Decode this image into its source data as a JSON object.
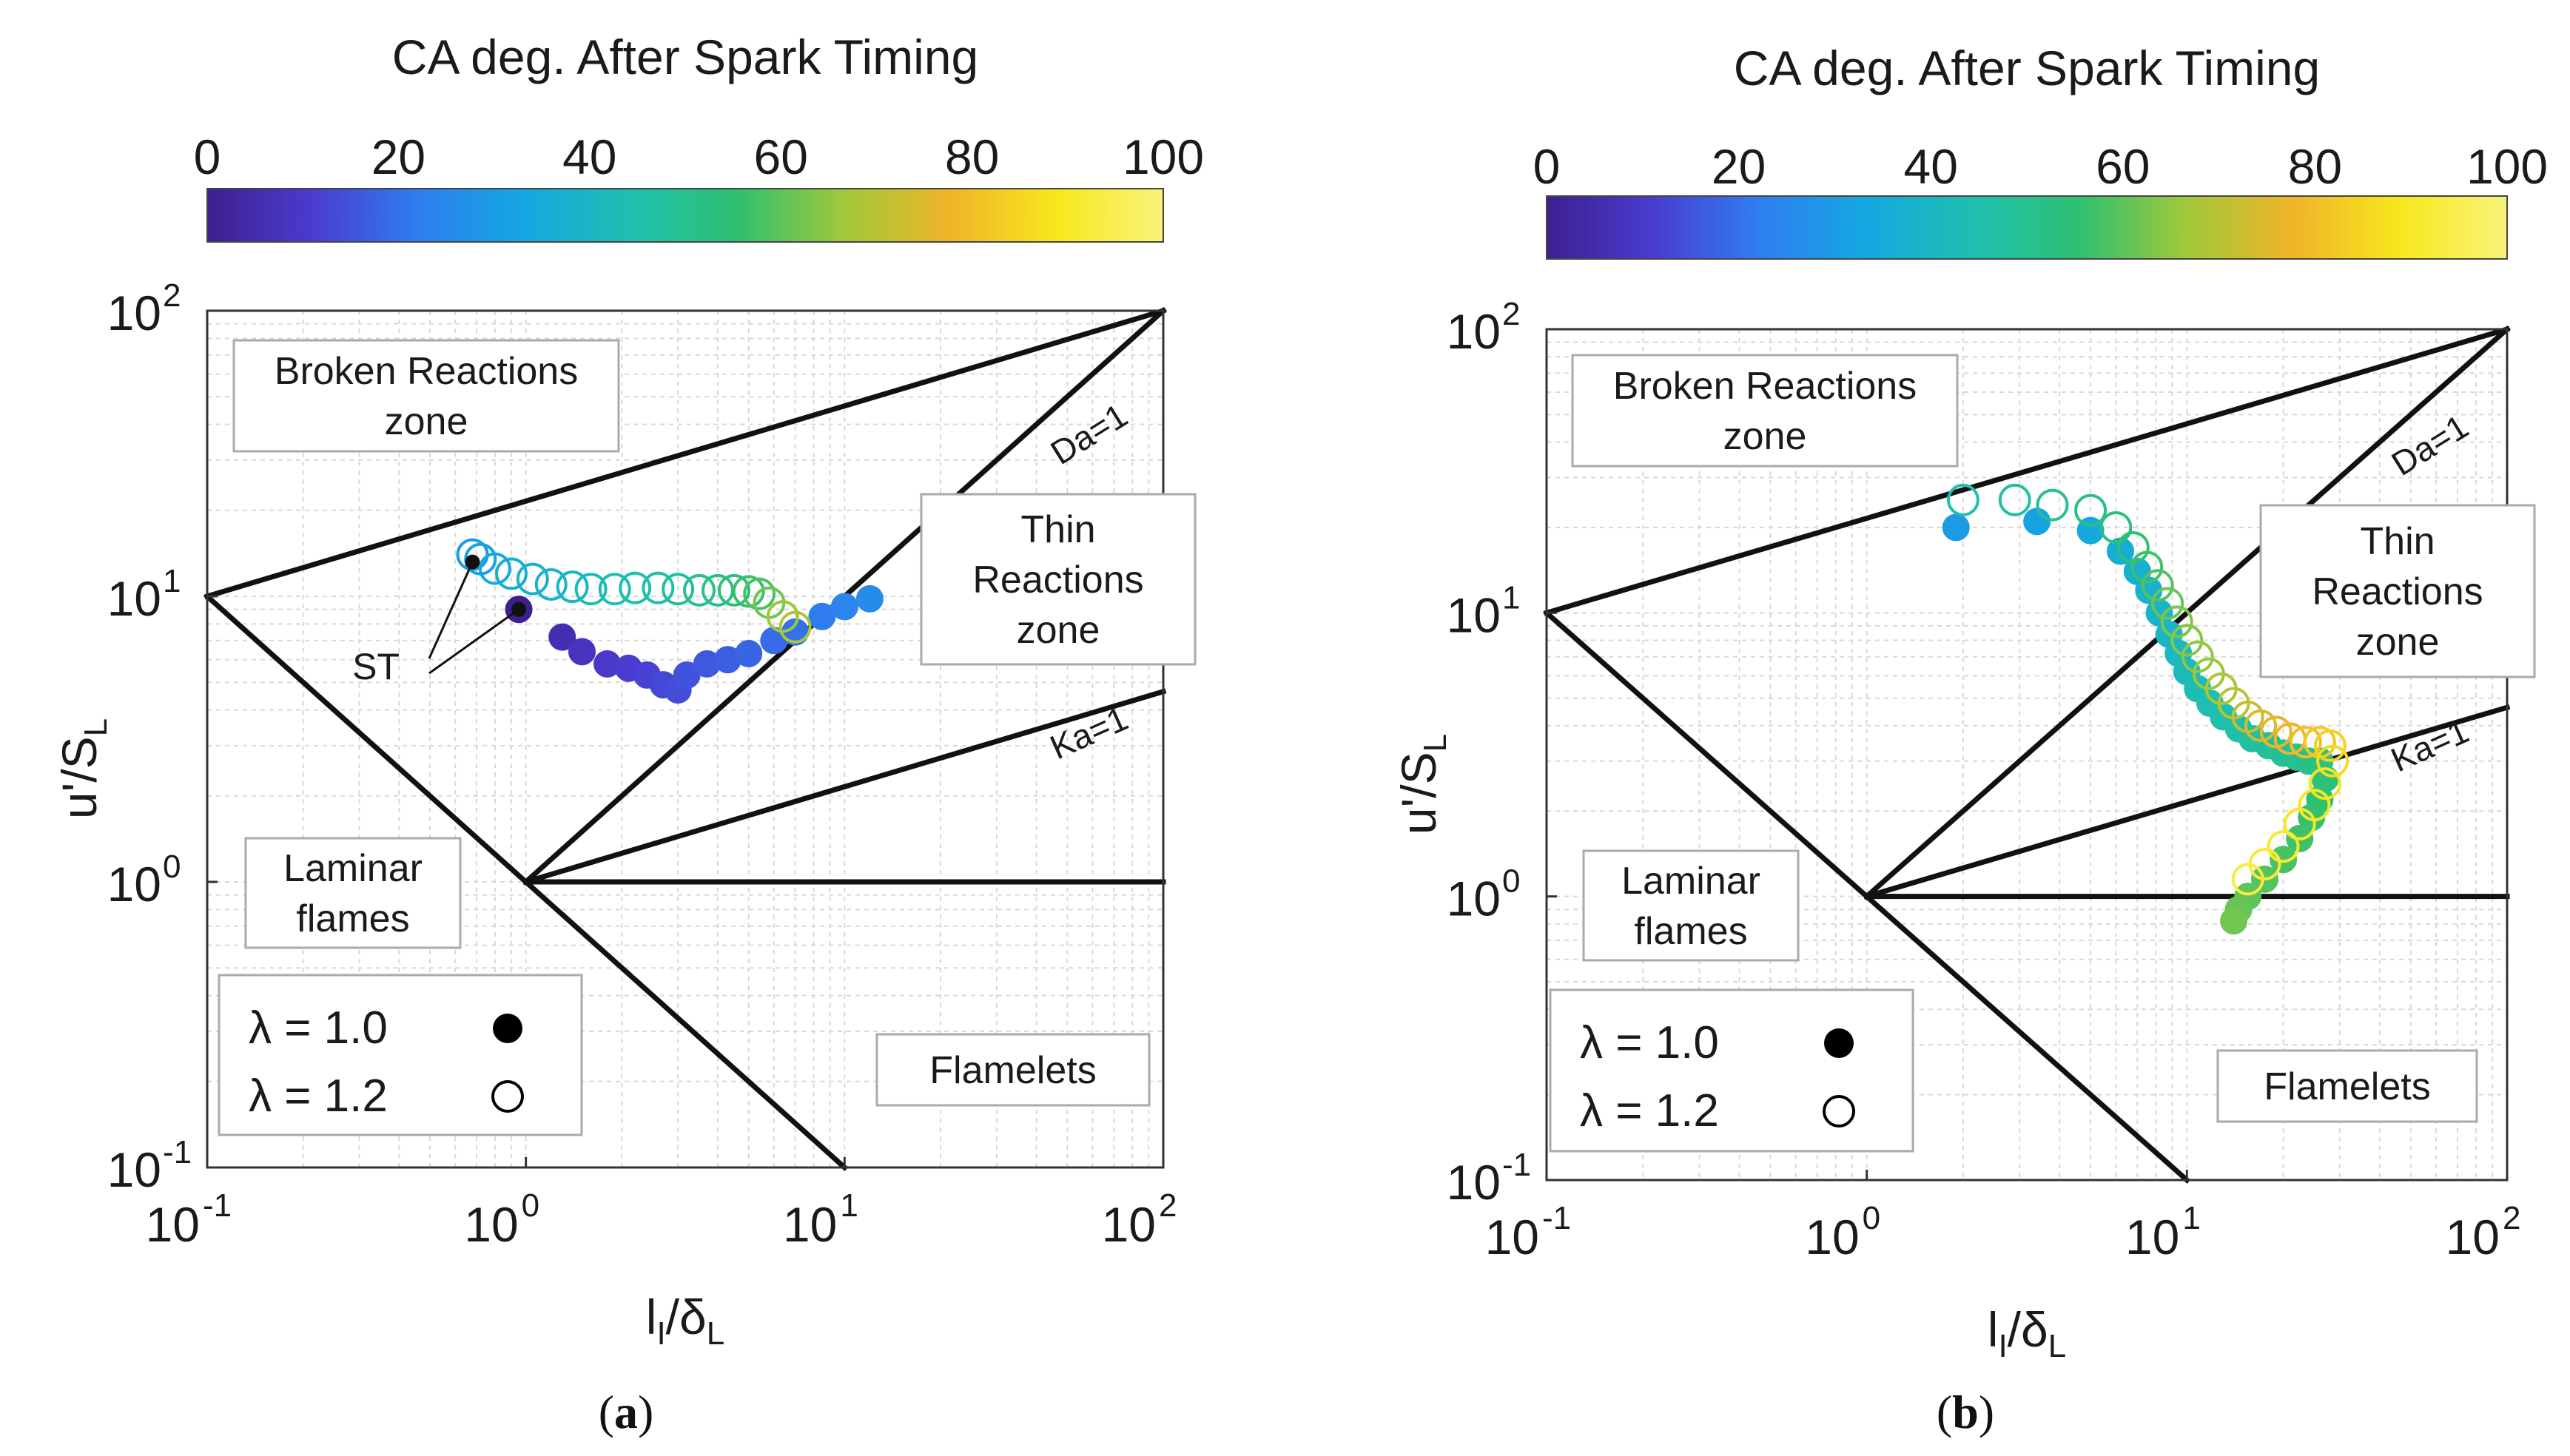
{
  "colormap": {
    "stops": [
      "#3e1f8f",
      "#4a3cd0",
      "#2f7ef0",
      "#14a8e0",
      "#1ebfb0",
      "#2fc070",
      "#a2c83a",
      "#f0b42a",
      "#f7e81e",
      "#f8f37a"
    ]
  },
  "chart_data": [
    {
      "panel": "(a)",
      "panel_letter": "a",
      "type": "scatter",
      "colorbar": {
        "title": "CA deg. After Spark Timing",
        "ticks": [
          "0",
          "20",
          "40",
          "60",
          "80",
          "100"
        ],
        "range": [
          0,
          100
        ]
      },
      "xlabel": "l",
      "xlabel_sub": "I",
      "xlabel_mid": "/δ",
      "xlabel_sub2": "L",
      "ylabel": "u'/S",
      "ylabel_sub": "L",
      "x_scale": "log",
      "y_scale": "log",
      "xlim": [
        0.1,
        100
      ],
      "ylim": [
        0.1,
        100
      ],
      "x_ticks": [
        {
          "base": "10",
          "exp": "-1"
        },
        {
          "base": "10",
          "exp": "0"
        },
        {
          "base": "10",
          "exp": "1"
        },
        {
          "base": "10",
          "exp": "2"
        }
      ],
      "y_ticks": [
        {
          "base": "10",
          "exp": "-1"
        },
        {
          "base": "10",
          "exp": "0"
        },
        {
          "base": "10",
          "exp": "1"
        },
        {
          "base": "10",
          "exp": "2"
        }
      ],
      "grid": true,
      "zones": [
        {
          "lines": [
            "Broken Reactions",
            "zone"
          ]
        },
        {
          "lines": [
            "Thin",
            "Reactions",
            "zone"
          ]
        },
        {
          "lines": [
            "Laminar",
            "flames"
          ]
        },
        {
          "lines": [
            "Flamelets"
          ]
        }
      ],
      "line_labels": [
        "Da=1",
        "Ka=1"
      ],
      "annotation": "ST",
      "legend": {
        "placement": "bottom-left",
        "entries": [
          {
            "label": "λ = 1.0",
            "marker": "filled"
          },
          {
            "label": "λ = 1.2",
            "marker": "open"
          }
        ]
      },
      "series": [
        {
          "name": "λ = 1.0",
          "marker": "filled",
          "points": [
            [
              0.95,
              9.0,
              0
            ],
            [
              1.3,
              7.2,
              6
            ],
            [
              1.5,
              6.4,
              8
            ],
            [
              1.8,
              5.8,
              10
            ],
            [
              2.1,
              5.6,
              11
            ],
            [
              2.4,
              5.3,
              12
            ],
            [
              2.7,
              4.9,
              13
            ],
            [
              3.0,
              4.7,
              14
            ],
            [
              3.2,
              5.3,
              15
            ],
            [
              3.7,
              5.8,
              16
            ],
            [
              4.3,
              6.0,
              17
            ],
            [
              5.0,
              6.3,
              18
            ],
            [
              6.0,
              7.0,
              19
            ],
            [
              7.0,
              7.5,
              20
            ],
            [
              8.5,
              8.5,
              22
            ],
            [
              10.0,
              9.2,
              24
            ],
            [
              12.0,
              9.8,
              26
            ]
          ]
        },
        {
          "name": "λ = 1.2",
          "marker": "open",
          "points": [
            [
              0.68,
              14.0,
              30
            ],
            [
              0.72,
              13.5,
              32
            ],
            [
              0.8,
              12.5,
              34
            ],
            [
              0.9,
              12.0,
              36
            ],
            [
              1.05,
              11.5,
              38
            ],
            [
              1.2,
              11.0,
              39
            ],
            [
              1.4,
              10.8,
              40
            ],
            [
              1.6,
              10.6,
              42
            ],
            [
              1.9,
              10.6,
              44
            ],
            [
              2.2,
              10.7,
              45
            ],
            [
              2.6,
              10.7,
              46
            ],
            [
              3.0,
              10.6,
              48
            ],
            [
              3.5,
              10.5,
              50
            ],
            [
              4.0,
              10.5,
              52
            ],
            [
              4.5,
              10.5,
              54
            ],
            [
              5.0,
              10.4,
              56
            ],
            [
              5.4,
              10.2,
              58
            ],
            [
              5.8,
              9.5,
              62
            ],
            [
              6.4,
              8.5,
              66
            ],
            [
              7.0,
              7.8,
              68
            ]
          ]
        }
      ]
    },
    {
      "panel": "(b)",
      "panel_letter": "b",
      "type": "scatter",
      "colorbar": {
        "title": "CA deg. After Spark Timing",
        "ticks": [
          "0",
          "20",
          "40",
          "60",
          "80",
          "100"
        ],
        "range": [
          0,
          100
        ]
      },
      "xlabel": "l",
      "xlabel_sub": "I",
      "xlabel_mid": "/δ",
      "xlabel_sub2": "L",
      "ylabel": "u'/S",
      "ylabel_sub": "L",
      "x_scale": "log",
      "y_scale": "log",
      "xlim": [
        0.1,
        100
      ],
      "ylim": [
        0.1,
        100
      ],
      "x_ticks": [
        {
          "base": "10",
          "exp": "-1"
        },
        {
          "base": "10",
          "exp": "0"
        },
        {
          "base": "10",
          "exp": "1"
        },
        {
          "base": "10",
          "exp": "2"
        }
      ],
      "y_ticks": [
        {
          "base": "10",
          "exp": "-1"
        },
        {
          "base": "10",
          "exp": "0"
        },
        {
          "base": "10",
          "exp": "1"
        },
        {
          "base": "10",
          "exp": "2"
        }
      ],
      "grid": true,
      "zones": [
        {
          "lines": [
            "Broken Reactions",
            "zone"
          ]
        },
        {
          "lines": [
            "Thin",
            "Reactions",
            "zone"
          ]
        },
        {
          "lines": [
            "Laminar",
            "flames"
          ]
        },
        {
          "lines": [
            "Flamelets"
          ]
        }
      ],
      "line_labels": [
        "Da=1",
        "Ka=1"
      ],
      "legend": {
        "placement": "bottom-left",
        "entries": [
          {
            "label": "λ = 1.0",
            "marker": "filled"
          },
          {
            "label": "λ = 1.2",
            "marker": "open"
          }
        ]
      },
      "series": [
        {
          "name": "λ = 1.0",
          "marker": "filled",
          "points": [
            [
              1.9,
              20.0,
              30
            ],
            [
              3.4,
              21.0,
              32
            ],
            [
              5.0,
              19.5,
              34
            ],
            [
              6.2,
              16.5,
              36
            ],
            [
              7.0,
              14.0,
              37
            ],
            [
              7.6,
              12.0,
              38
            ],
            [
              8.2,
              10.0,
              39
            ],
            [
              8.8,
              8.4,
              40
            ],
            [
              9.4,
              7.2,
              41
            ],
            [
              10.0,
              6.2,
              42
            ],
            [
              10.8,
              5.4,
              43
            ],
            [
              11.8,
              4.8,
              44
            ],
            [
              13.0,
              4.3,
              45
            ],
            [
              14.5,
              3.9,
              46
            ],
            [
              16.0,
              3.6,
              47
            ],
            [
              18.0,
              3.4,
              48
            ],
            [
              20.0,
              3.2,
              49
            ],
            [
              22.0,
              3.1,
              50
            ],
            [
              24.0,
              3.0,
              51
            ],
            [
              26.0,
              3.0,
              52
            ],
            [
              27.0,
              2.6,
              54
            ],
            [
              26.0,
              2.2,
              55
            ],
            [
              24.5,
              1.9,
              56
            ],
            [
              22.5,
              1.6,
              57
            ],
            [
              20.0,
              1.35,
              58
            ],
            [
              17.5,
              1.15,
              59
            ],
            [
              15.5,
              1.0,
              60
            ],
            [
              14.5,
              0.9,
              61
            ],
            [
              14.0,
              0.82,
              62
            ]
          ]
        },
        {
          "name": "λ = 1.2",
          "marker": "open",
          "points": [
            [
              2.0,
              25.0,
              45
            ],
            [
              2.9,
              25.0,
              47
            ],
            [
              3.8,
              24.0,
              49
            ],
            [
              5.0,
              23.0,
              51
            ],
            [
              6.0,
              20.0,
              53
            ],
            [
              6.8,
              17.0,
              55
            ],
            [
              7.5,
              14.5,
              57
            ],
            [
              8.1,
              12.5,
              59
            ],
            [
              8.7,
              10.8,
              61
            ],
            [
              9.3,
              9.3,
              63
            ],
            [
              10.0,
              8.0,
              64
            ],
            [
              10.8,
              7.0,
              65
            ],
            [
              11.7,
              6.1,
              66
            ],
            [
              12.8,
              5.4,
              68
            ],
            [
              14.0,
              4.8,
              70
            ],
            [
              15.5,
              4.3,
              72
            ],
            [
              17.0,
              4.0,
              74
            ],
            [
              19.0,
              3.8,
              76
            ],
            [
              21.0,
              3.6,
              78
            ],
            [
              23.5,
              3.5,
              80
            ],
            [
              26.0,
              3.5,
              82
            ],
            [
              28.0,
              3.4,
              84
            ],
            [
              28.5,
              3.0,
              86
            ],
            [
              27.0,
              2.5,
              88
            ],
            [
              25.0,
              2.1,
              89
            ],
            [
              22.5,
              1.8,
              90
            ],
            [
              20.0,
              1.5,
              91
            ],
            [
              17.5,
              1.3,
              92
            ],
            [
              15.5,
              1.15,
              93
            ]
          ]
        }
      ]
    }
  ]
}
